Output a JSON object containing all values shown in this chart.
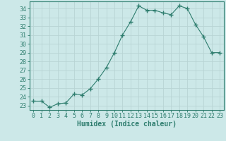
{
  "x": [
    0,
    1,
    2,
    3,
    4,
    5,
    6,
    7,
    8,
    9,
    10,
    11,
    12,
    13,
    14,
    15,
    16,
    17,
    18,
    19,
    20,
    21,
    22,
    23
  ],
  "y": [
    23.5,
    23.5,
    22.8,
    23.2,
    23.3,
    24.3,
    24.2,
    24.9,
    26.0,
    27.3,
    29.0,
    31.0,
    32.5,
    34.3,
    33.8,
    33.8,
    33.5,
    33.3,
    34.3,
    34.0,
    32.2,
    30.8,
    29.0,
    29.0
  ],
  "line_color": "#2e7d6e",
  "marker": "+",
  "marker_size": 4,
  "bg_color": "#cce8e8",
  "grid_color": "#b8d4d4",
  "xlabel": "Humidex (Indice chaleur)",
  "ylim": [
    22.5,
    34.8
  ],
  "xlim": [
    -0.5,
    23.5
  ],
  "yticks": [
    23,
    24,
    25,
    26,
    27,
    28,
    29,
    30,
    31,
    32,
    33,
    34
  ],
  "xticks": [
    0,
    1,
    2,
    3,
    4,
    5,
    6,
    7,
    8,
    9,
    10,
    11,
    12,
    13,
    14,
    15,
    16,
    17,
    18,
    19,
    20,
    21,
    22,
    23
  ],
  "tick_color": "#2e7d6e",
  "label_color": "#2e7d6e",
  "spine_color": "#2e7d6e",
  "tick_fontsize": 6,
  "xlabel_fontsize": 7
}
